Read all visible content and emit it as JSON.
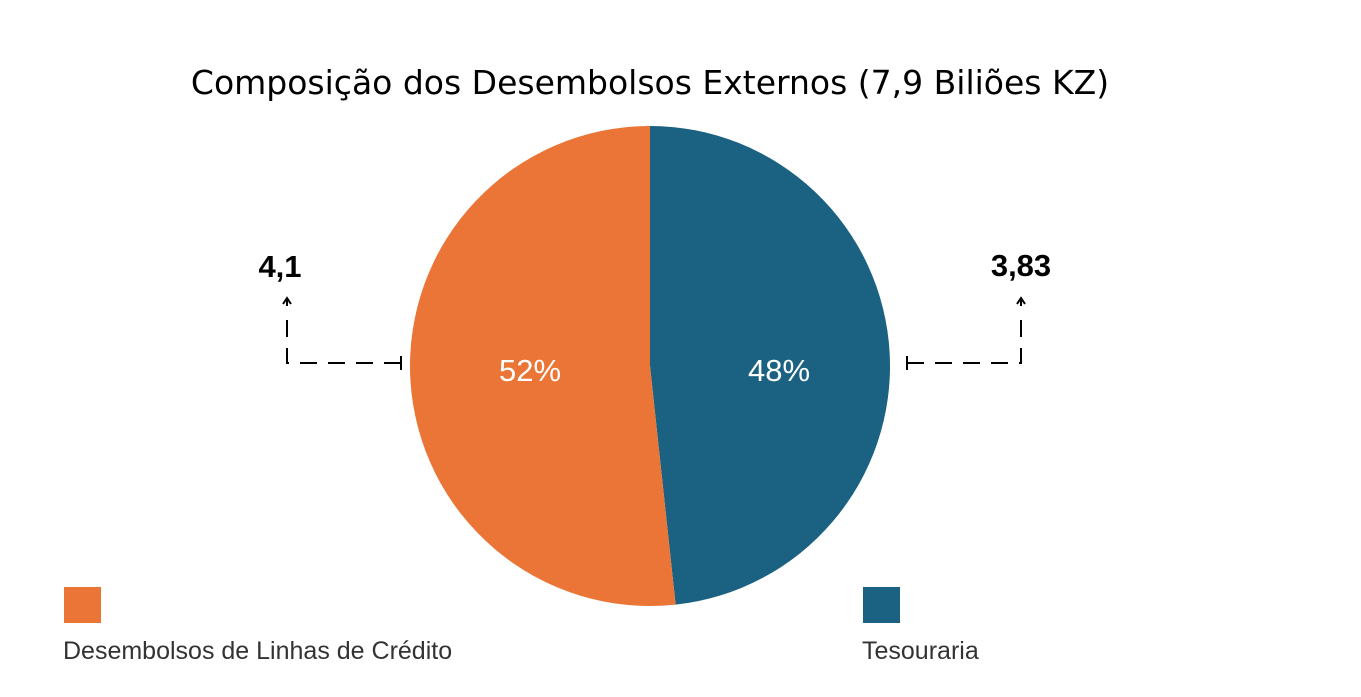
{
  "chart_data": {
    "type": "pie",
    "title": "Composição dos Desembolsos Externos (7,9 Biliões KZ)",
    "start_angle_deg": 0,
    "direction": "clockwise",
    "slices": [
      {
        "name": "Tesouraria",
        "value": 3.83,
        "value_label": "3,83",
        "percent_label": "48%",
        "color": "#1b6182"
      },
      {
        "name": "Desembolsos de Linhas de Crédito",
        "value": 4.1,
        "value_label": "4,1",
        "percent_label": "52%",
        "color": "#ea7536"
      }
    ],
    "legend": [
      {
        "label": "Desembolsos de Linhas de Crédito",
        "color": "#ea7536"
      },
      {
        "label": "Tesouraria",
        "color": "#1b6182"
      }
    ],
    "legend_position": "bottom"
  }
}
